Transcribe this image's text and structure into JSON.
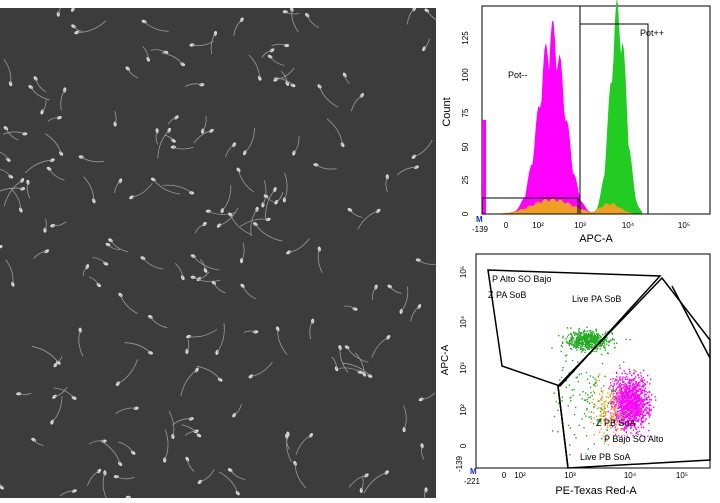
{
  "micrograph": {
    "description_free": true
  },
  "histogram": {
    "ylabel": "Count",
    "xlabel": "APC-A",
    "ytick_labels": [
      "0",
      "25",
      "50",
      "75",
      "100",
      "125"
    ],
    "xtick_labels": [
      "-139",
      "0",
      "10²",
      "10³",
      "10⁴",
      "10⁵"
    ],
    "marker": "M",
    "gate_neg_label": "Pot--",
    "gate_pos_label": "Pot++",
    "colors": {
      "negative": "#ff00ff",
      "positive": "#22cc22",
      "overlap": "#f0a020",
      "gate": "#000000"
    }
  },
  "dotplot": {
    "ylabel": "APC-A",
    "xlabel": "PE-Texas Red-A",
    "ytick_labels": [
      "-139",
      "0",
      "10²",
      "10³",
      "10⁴",
      "10⁵"
    ],
    "xtick_labels": [
      "-221",
      "0",
      "10²",
      "10³",
      "10⁴",
      "10⁵"
    ],
    "marker": "M",
    "gate_labels": {
      "p_alto_so_bajo": "P Alto SO Bajo",
      "z_pa_sob": "Z PA SoB",
      "live_pa_sob": "Live PA SoB",
      "z_pb_soa": "Z PB SoA",
      "p_bajo_so_alto": "P Bajo SO Alto",
      "live_pb_soa": "Live PB SoA"
    },
    "colors": {
      "green": "#22aa22",
      "magenta": "#ff00ff",
      "orange": "#f0a020"
    }
  }
}
